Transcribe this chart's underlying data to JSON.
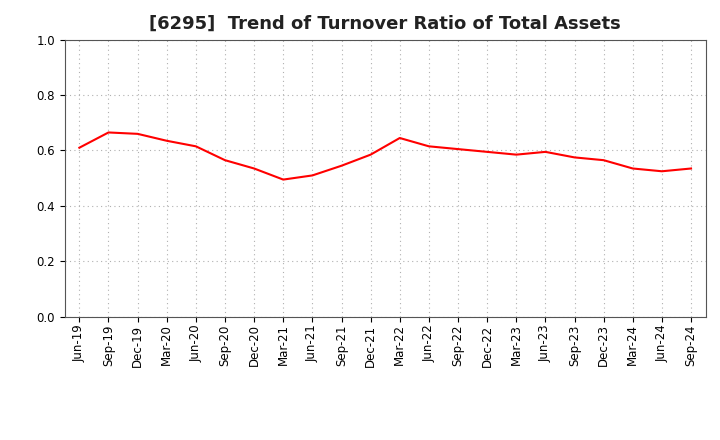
{
  "title": "[6295]  Trend of Turnover Ratio of Total Assets",
  "labels": [
    "Jun-19",
    "Sep-19",
    "Dec-19",
    "Mar-20",
    "Jun-20",
    "Sep-20",
    "Dec-20",
    "Mar-21",
    "Jun-21",
    "Sep-21",
    "Dec-21",
    "Mar-22",
    "Jun-22",
    "Sep-22",
    "Dec-22",
    "Mar-23",
    "Jun-23",
    "Sep-23",
    "Dec-23",
    "Mar-24",
    "Jun-24",
    "Sep-24"
  ],
  "values": [
    0.61,
    0.665,
    0.66,
    0.635,
    0.615,
    0.565,
    0.535,
    0.495,
    0.51,
    0.545,
    0.585,
    0.645,
    0.615,
    0.605,
    0.595,
    0.585,
    0.595,
    0.575,
    0.565,
    0.535,
    0.525,
    0.535
  ],
  "line_color": "#ff0000",
  "line_width": 1.5,
  "ylim": [
    0.0,
    1.0
  ],
  "yticks": [
    0.0,
    0.2,
    0.4,
    0.6,
    0.8,
    1.0
  ],
  "grid_color": "#b0b0b0",
  "background_color": "#ffffff",
  "title_fontsize": 13,
  "tick_fontsize": 8.5
}
